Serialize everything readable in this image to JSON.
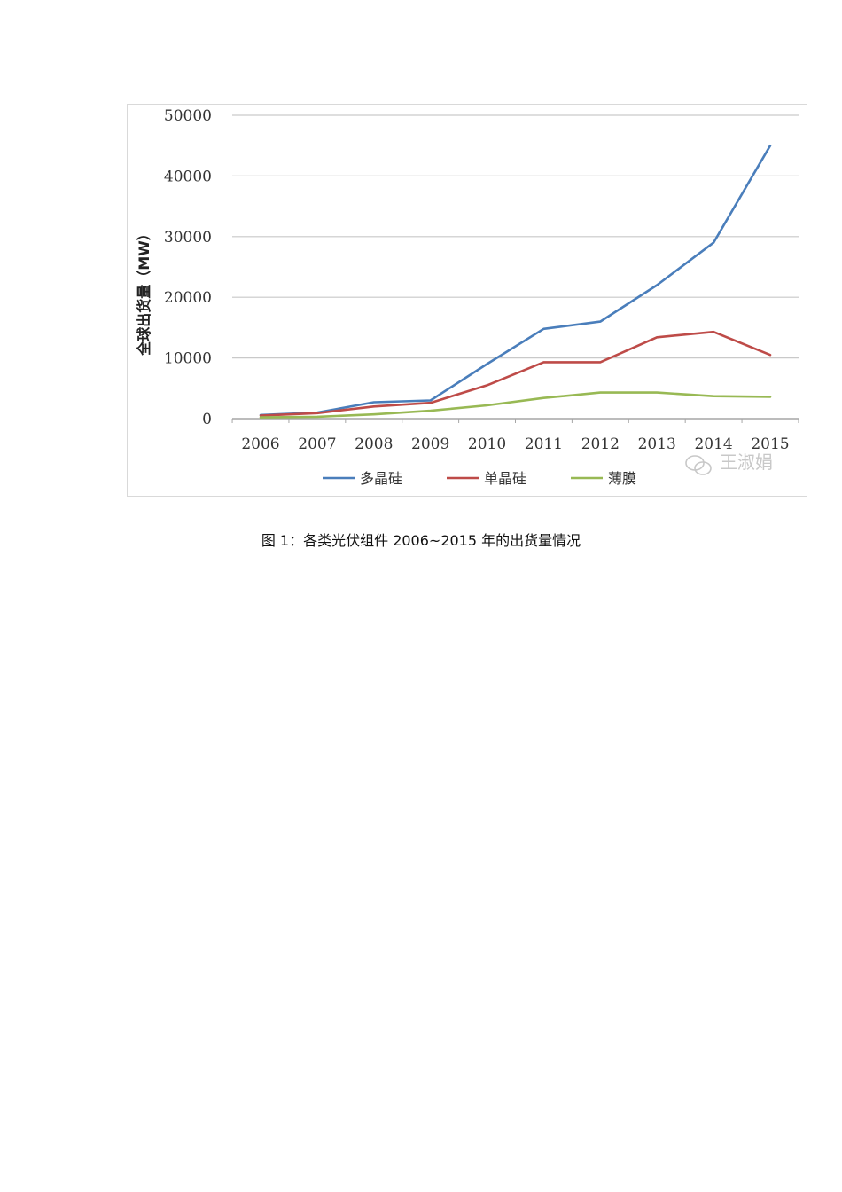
{
  "chart_data": {
    "type": "line",
    "title": "",
    "xlabel": "",
    "ylabel": "全球出货量（MW）",
    "ylim": [
      0,
      50000
    ],
    "yticks": [
      0,
      10000,
      20000,
      30000,
      40000,
      50000
    ],
    "grid": true,
    "legend_position": "bottom",
    "categories": [
      "2006",
      "2007",
      "2008",
      "2009",
      "2010",
      "2011",
      "2012",
      "2013",
      "2014",
      "2015"
    ],
    "series": [
      {
        "name": "多晶硅",
        "color": "#4a7ebb",
        "values": [
          600,
          1000,
          2700,
          3000,
          9000,
          14800,
          16000,
          22000,
          29000,
          45000
        ]
      },
      {
        "name": "单晶硅",
        "color": "#be4b48",
        "values": [
          500,
          900,
          2000,
          2600,
          5500,
          9300,
          9300,
          13400,
          14300,
          10500
        ]
      },
      {
        "name": "薄膜",
        "color": "#98b954",
        "values": [
          200,
          300,
          700,
          1300,
          2200,
          3400,
          4300,
          4300,
          3700,
          3600
        ]
      }
    ]
  },
  "watermark": {
    "text": "王淑娟",
    "icon": "wechat-icon"
  },
  "caption": "图 1：各类光伏组件 2006~2015 年的出货量情况"
}
